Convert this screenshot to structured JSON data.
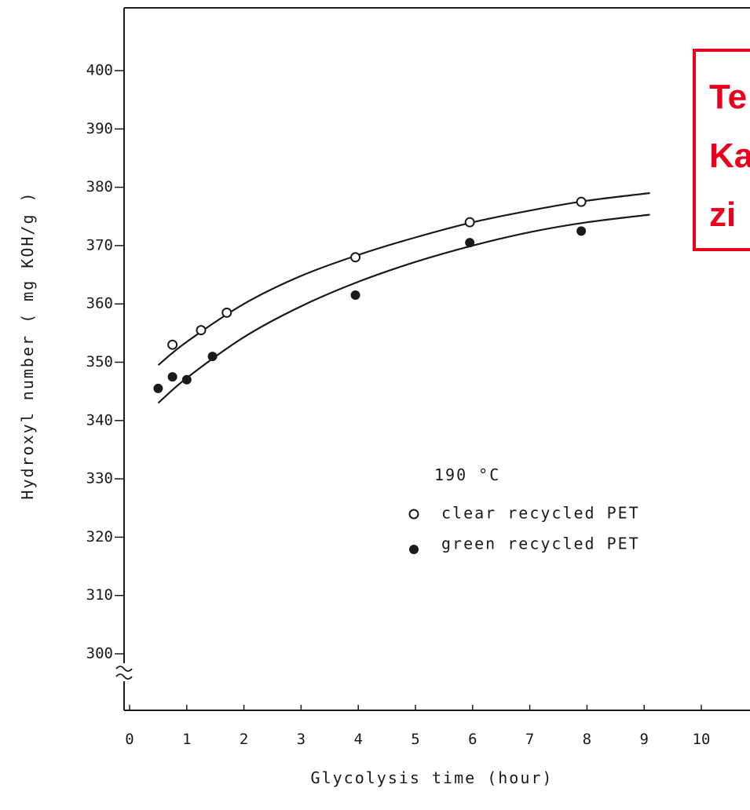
{
  "chart_data": {
    "type": "scatter",
    "title": "",
    "xlabel": "Glycolysis time (hour)",
    "ylabel": "Hydroxyl number ( mg KOH/g )",
    "xlim": [
      0,
      10.5
    ],
    "ylim": [
      290,
      405
    ],
    "x_ticks": [
      0,
      1,
      2,
      3,
      4,
      5,
      6,
      7,
      8,
      9,
      10
    ],
    "y_ticks": [
      300,
      310,
      320,
      330,
      340,
      350,
      360,
      370,
      380,
      390,
      400
    ],
    "y_axis_break": true,
    "grid": false,
    "legend_position": "center-right",
    "legend_title": "190 °C",
    "series": [
      {
        "name": "clear recycled PET",
        "marker": "open-circle",
        "points": [
          {
            "x": 0.75,
            "y": 353
          },
          {
            "x": 1.25,
            "y": 355.5
          },
          {
            "x": 1.7,
            "y": 358.5
          },
          {
            "x": 3.95,
            "y": 368
          },
          {
            "x": 5.95,
            "y": 374
          },
          {
            "x": 7.9,
            "y": 377.5
          }
        ],
        "fit": [
          {
            "x": 0.5,
            "y": 349.5
          },
          {
            "x": 1.0,
            "y": 353.5
          },
          {
            "x": 2.0,
            "y": 360
          },
          {
            "x": 3.0,
            "y": 364.8
          },
          {
            "x": 4.0,
            "y": 368.4
          },
          {
            "x": 5.0,
            "y": 371.4
          },
          {
            "x": 6.0,
            "y": 374
          },
          {
            "x": 7.0,
            "y": 376
          },
          {
            "x": 8.0,
            "y": 377.7
          },
          {
            "x": 9.1,
            "y": 379
          }
        ]
      },
      {
        "name": "green recycled PET",
        "marker": "filled-circle",
        "points": [
          {
            "x": 0.5,
            "y": 345.5
          },
          {
            "x": 0.75,
            "y": 347.5
          },
          {
            "x": 1.0,
            "y": 347
          },
          {
            "x": 1.45,
            "y": 351
          },
          {
            "x": 3.95,
            "y": 361.5
          },
          {
            "x": 5.95,
            "y": 370.5
          },
          {
            "x": 7.9,
            "y": 372.5
          }
        ],
        "fit": [
          {
            "x": 0.5,
            "y": 343
          },
          {
            "x": 1.0,
            "y": 347.3
          },
          {
            "x": 2.0,
            "y": 354.3
          },
          {
            "x": 3.0,
            "y": 359.6
          },
          {
            "x": 4.0,
            "y": 363.8
          },
          {
            "x": 5.0,
            "y": 367.2
          },
          {
            "x": 6.0,
            "y": 370
          },
          {
            "x": 7.0,
            "y": 372.3
          },
          {
            "x": 8.0,
            "y": 374
          },
          {
            "x": 9.1,
            "y": 375.3
          }
        ]
      }
    ]
  },
  "overlay": {
    "lines": [
      "Te",
      "Ka",
      "zi"
    ],
    "color": "#e8001c"
  }
}
